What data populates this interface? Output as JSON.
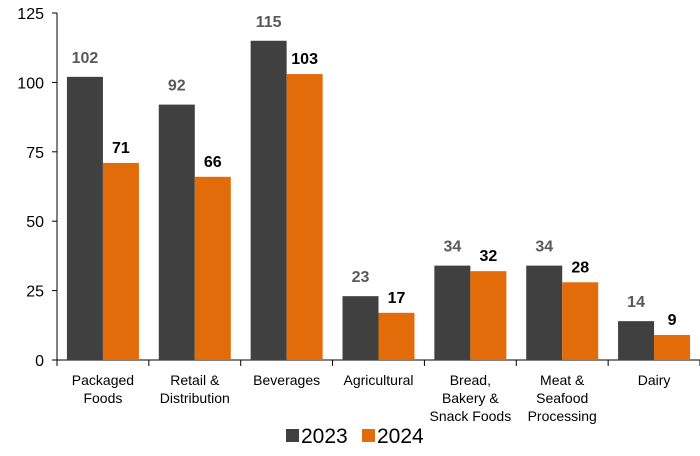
{
  "chart_data": {
    "type": "bar",
    "title": "",
    "xlabel": "",
    "ylabel": "",
    "ylim": [
      0,
      125
    ],
    "yticks": [
      0,
      25,
      50,
      75,
      100,
      125
    ],
    "grid": false,
    "legend_position": "bottom",
    "categories": [
      [
        "Packaged",
        "Foods"
      ],
      [
        "Retail &",
        "Distribution"
      ],
      [
        "Beverages"
      ],
      [
        "Agricultural"
      ],
      [
        "Bread,",
        "Bakery &",
        "Snack Foods"
      ],
      [
        "Meat &",
        "Seafood",
        "Processing"
      ],
      [
        "Dairy"
      ]
    ],
    "series": [
      {
        "name": "2023",
        "color": "#404040",
        "label_color": "#595959",
        "values": [
          102,
          92,
          115,
          23,
          34,
          34,
          14
        ]
      },
      {
        "name": "2024",
        "color": "#E36C0A",
        "label_color": "#000000",
        "values": [
          71,
          66,
          103,
          17,
          32,
          28,
          9
        ]
      }
    ]
  }
}
